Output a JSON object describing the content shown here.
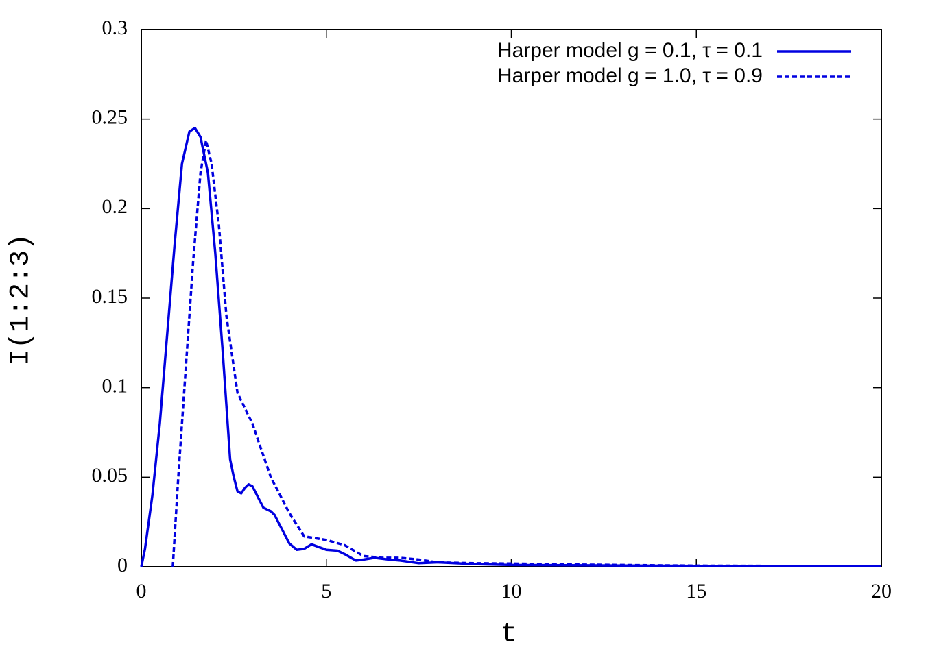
{
  "chart_data": {
    "type": "line",
    "x_label": "t",
    "y_label": "I(1:2:3)",
    "xlim": [
      0,
      20
    ],
    "ylim": [
      0,
      0.3
    ],
    "xticks": [
      0,
      5,
      10,
      15,
      20
    ],
    "yticks": [
      0,
      0.05,
      0.1,
      0.15,
      0.2,
      0.25,
      0.3
    ],
    "legend": "upper right",
    "series": [
      {
        "name": "Harper model g = 0.1, τ = 0.1",
        "color": "#0000e0",
        "dashed": false,
        "x": [
          0,
          0.1,
          0.3,
          0.5,
          0.7,
          0.9,
          1.1,
          1.3,
          1.45,
          1.6,
          1.8,
          2.0,
          2.2,
          2.4,
          2.5,
          2.6,
          2.7,
          2.8,
          2.9,
          3.0,
          3.2,
          3.3,
          3.5,
          3.6,
          3.8,
          4.0,
          4.2,
          4.4,
          4.6,
          4.8,
          5.0,
          5.3,
          5.5,
          5.8,
          6.0,
          6.3,
          6.7,
          7.0,
          7.5,
          8.0,
          9,
          10,
          12,
          15,
          20
        ],
        "values": [
          0,
          0.01,
          0.04,
          0.08,
          0.13,
          0.18,
          0.225,
          0.243,
          0.245,
          0.24,
          0.22,
          0.175,
          0.12,
          0.06,
          0.05,
          0.042,
          0.041,
          0.044,
          0.046,
          0.045,
          0.037,
          0.033,
          0.031,
          0.029,
          0.021,
          0.013,
          0.0095,
          0.01,
          0.0125,
          0.011,
          0.0095,
          0.009,
          0.007,
          0.0035,
          0.004,
          0.005,
          0.004,
          0.0035,
          0.002,
          0.0025,
          0.0015,
          0.001,
          0.0008,
          0.0005,
          0.0003
        ]
      },
      {
        "name": "Harper model g = 1.0, τ = 0.9",
        "color": "#0000e0",
        "dashed": true,
        "x": [
          0.85,
          1.0,
          1.2,
          1.4,
          1.6,
          1.75,
          1.9,
          2.1,
          2.3,
          2.6,
          3.0,
          3.5,
          4.0,
          4.4,
          5.0,
          5.5,
          6.0,
          6.5,
          7.0,
          7.5,
          8.0,
          9,
          10,
          12,
          15,
          20
        ],
        "values": [
          0,
          0.05,
          0.11,
          0.17,
          0.22,
          0.238,
          0.225,
          0.19,
          0.14,
          0.097,
          0.08,
          0.05,
          0.03,
          0.017,
          0.015,
          0.012,
          0.006,
          0.005,
          0.005,
          0.004,
          0.0025,
          0.002,
          0.0018,
          0.0012,
          0.0006,
          0.0003
        ]
      }
    ]
  }
}
